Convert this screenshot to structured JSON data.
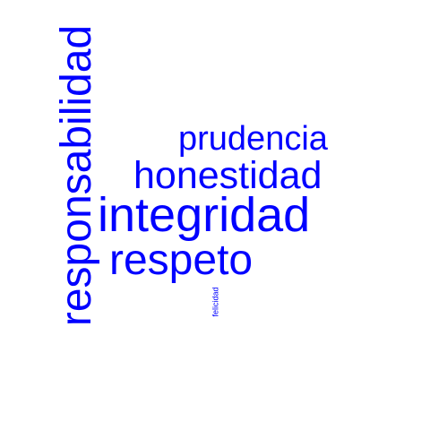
{
  "word_cloud": {
    "color": "#0000ff",
    "words": [
      {
        "text": "integridad",
        "orientation": "horizontal"
      },
      {
        "text": "responsabilidad",
        "orientation": "vertical"
      },
      {
        "text": "respeto",
        "orientation": "horizontal"
      },
      {
        "text": "honestidad",
        "orientation": "horizontal"
      },
      {
        "text": "prudencia",
        "orientation": "horizontal"
      },
      {
        "text": "felicidad",
        "orientation": "vertical"
      }
    ]
  }
}
